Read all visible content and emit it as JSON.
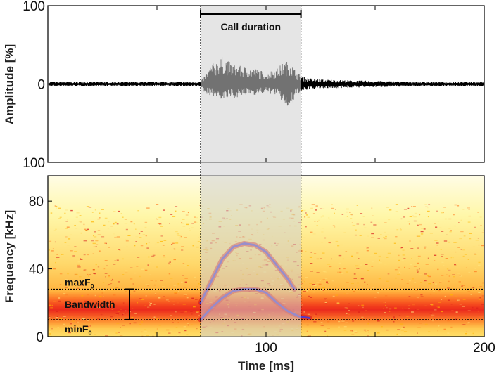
{
  "chart_data": [
    {
      "type": "line",
      "panel": "waveform",
      "ylabel": "Amplitude [%]",
      "ytick_labels": [
        "100",
        "0",
        "100"
      ],
      "xlim": [
        0,
        200
      ],
      "ylim": [
        -100,
        100
      ],
      "series": [
        {
          "x": [
            0,
            20,
            40,
            60,
            70,
            72,
            75,
            80,
            85,
            90,
            95,
            100,
            105,
            108,
            111,
            114,
            118,
            125,
            135,
            150,
            170,
            200
          ],
          "envelope": [
            3,
            3,
            3,
            3,
            3,
            12,
            25,
            35,
            25,
            22,
            20,
            15,
            20,
            28,
            30,
            15,
            8,
            6,
            5,
            4,
            3,
            3
          ],
          "downward_envelope": [
            3,
            3,
            3,
            3,
            3,
            12,
            15,
            20,
            18,
            15,
            14,
            12,
            14,
            25,
            35,
            15,
            8,
            6,
            5,
            4,
            3,
            3
          ]
        }
      ],
      "annotations": [
        {
          "text": "Call duration",
          "x_start": 70,
          "x_end": 116
        }
      ]
    },
    {
      "type": "heatmap",
      "panel": "spectrogram",
      "xlabel": "Time [ms]",
      "ylabel": "Frequency [kHz]",
      "xlim": [
        0,
        200
      ],
      "ylim": [
        0,
        95
      ],
      "xtick_labels": [
        "100",
        "200"
      ],
      "xticks": [
        100,
        200
      ],
      "yticks": [
        0,
        40,
        80
      ],
      "ytick_labels": [
        "0",
        "40",
        "80"
      ],
      "series": [
        {
          "name_hidden": "fundamental",
          "x": [
            70,
            75,
            80,
            85,
            90,
            95,
            100,
            105,
            110,
            115,
            120
          ],
          "y": [
            10,
            17,
            23,
            27,
            28,
            28,
            26,
            20,
            15,
            12,
            11
          ]
        },
        {
          "name_hidden": "harmonic",
          "x": [
            70,
            75,
            80,
            85,
            90,
            95,
            100,
            105,
            110,
            113
          ],
          "y": [
            20,
            33,
            46,
            53,
            55,
            54,
            50,
            42,
            34,
            28
          ]
        }
      ],
      "annotations": [
        {
          "text": "maxF",
          "subscript": "0",
          "value_khz": 28
        },
        {
          "text": "minF",
          "subscript": "0",
          "value_khz": 10
        },
        {
          "text": "Bandwidth",
          "from_khz": 10,
          "to_khz": 28
        }
      ],
      "call_window_ms": [
        70,
        116
      ]
    }
  ],
  "colors": {
    "shade": "#dddddd",
    "waveform": "#000000",
    "spec_light": "#ffff9a",
    "spec_mid": "#ffb400",
    "spec_hot": "#d81a1a",
    "spec_dark": "#3a3adf"
  }
}
